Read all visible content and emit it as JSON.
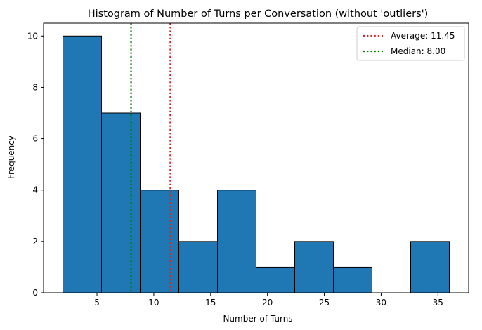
{
  "chart_data": {
    "type": "bar",
    "title": "Histogram of Number of Turns per Conversation (without 'outliers')",
    "xlabel": "Number of Turns",
    "ylabel": "Frequency",
    "bins": [
      {
        "start": 2.0,
        "end": 5.4,
        "count": 10
      },
      {
        "start": 5.4,
        "end": 8.8,
        "count": 7
      },
      {
        "start": 8.8,
        "end": 12.2,
        "count": 4
      },
      {
        "start": 12.2,
        "end": 15.6,
        "count": 2
      },
      {
        "start": 15.6,
        "end": 19.0,
        "count": 4
      },
      {
        "start": 19.0,
        "end": 22.4,
        "count": 1
      },
      {
        "start": 22.4,
        "end": 25.8,
        "count": 2
      },
      {
        "start": 25.8,
        "end": 29.2,
        "count": 1
      },
      {
        "start": 29.2,
        "end": 32.6,
        "count": 0
      },
      {
        "start": 32.6,
        "end": 36.0,
        "count": 2
      }
    ],
    "xlim": [
      0.3,
      37.7
    ],
    "ylim": [
      0,
      10.5
    ],
    "xticks": [
      5,
      10,
      15,
      20,
      25,
      30,
      35
    ],
    "yticks": [
      0,
      2,
      4,
      6,
      8,
      10
    ],
    "bar_color": "#1f77b4",
    "edge_color": "#000000",
    "reference_lines": [
      {
        "label": "Average: 11.45",
        "value": 11.45,
        "color": "#d62728"
      },
      {
        "label": "Median: 8.00",
        "value": 8.0,
        "color": "#008000"
      }
    ],
    "grid": false,
    "legend_position": "top-right"
  }
}
